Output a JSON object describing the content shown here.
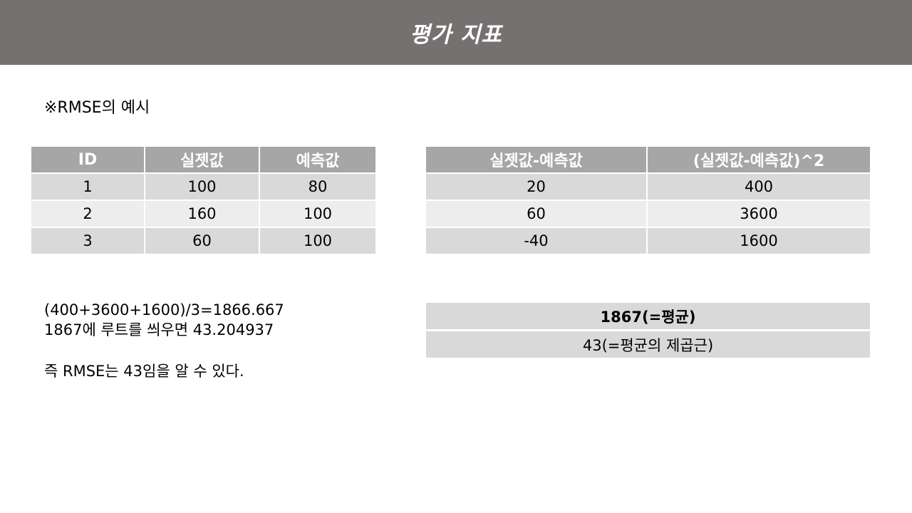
{
  "header": {
    "title": "평가 지표"
  },
  "subtitle": "※RMSE의 예시",
  "left_table": {
    "columns": [
      "ID",
      "실젯값",
      "예측값"
    ],
    "rows": [
      [
        "1",
        "100",
        "80"
      ],
      [
        "2",
        "160",
        "100"
      ],
      [
        "3",
        "60",
        "100"
      ]
    ]
  },
  "right_table": {
    "columns": [
      "실젯값-예측값",
      "(실젯값-예측값)^2"
    ],
    "rows": [
      [
        "20",
        "400"
      ],
      [
        "60",
        "3600"
      ],
      [
        "-40",
        "1600"
      ]
    ]
  },
  "calculation": {
    "line1": "(400+3600+1600)/3=1866.667",
    "line2": "1867에 루트를 씌우면 43.204937",
    "line3": "즉 RMSE는 43임을 알 수 있다."
  },
  "results": {
    "mean": "1867(=평균)",
    "root": "43(=평균의 제곱근)"
  },
  "colors": {
    "title_bar": "#757170",
    "header_cell": "#a6a6a6",
    "row_dark": "#d9d9d9",
    "row_light": "#ededed"
  }
}
